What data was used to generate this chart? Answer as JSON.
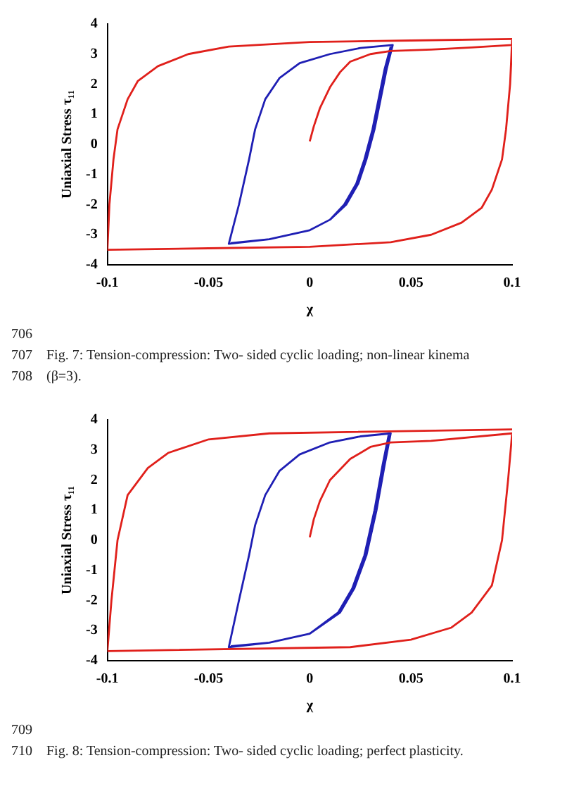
{
  "chart_data": [
    {
      "type": "line",
      "xlabel": "χ",
      "ylabel": "Uniaxial Stress τ₁₁",
      "xlim": [
        -0.1,
        0.1
      ],
      "xticks": [
        -0.1,
        -0.05,
        0,
        0.05,
        0.1
      ],
      "ylim": [
        -4,
        4
      ],
      "yticks": [
        -4,
        -3,
        -2,
        -1,
        0,
        1,
        2,
        3,
        4
      ],
      "grid": false,
      "legend": false,
      "marker": "none",
      "line_style": "solid",
      "series": [
        {
          "color": "#e0201b",
          "x": [
            0,
            0.002,
            0.005,
            0.01,
            0.015,
            0.02,
            0.03,
            0.04,
            0.06,
            0.08,
            0.1,
            0.099,
            0.097,
            0.095,
            0.09,
            0.085,
            0.075,
            0.06,
            0.04,
            0,
            -0.05,
            -0.1,
            -0.099,
            -0.097,
            -0.095,
            -0.09,
            -0.085,
            -0.075,
            -0.06,
            -0.04,
            0,
            0.05,
            0.1,
            0.099,
            0.097,
            0.095,
            0.09,
            0.085,
            0.075,
            0.06,
            0.04,
            0,
            -0.05,
            -0.1
          ],
          "values": [
            0.1,
            0.6,
            1.2,
            1.9,
            2.4,
            2.75,
            3.0,
            3.1,
            3.15,
            3.22,
            3.3,
            2,
            0.5,
            -0.5,
            -1.5,
            -2.1,
            -2.6,
            -3.0,
            -3.25,
            -3.4,
            -3.45,
            -3.5,
            -2,
            -0.5,
            0.5,
            1.5,
            2.1,
            2.6,
            3.0,
            3.25,
            3.4,
            3.45,
            3.5,
            2,
            0.5,
            -0.5,
            -1.5,
            -2.1,
            -2.6,
            -3.0,
            -3.25,
            -3.4,
            -3.45,
            -3.5
          ]
        },
        {
          "color": "#1f1fb4",
          "x": [
            0.04,
            0.037,
            0.034,
            0.031,
            0.027,
            0.023,
            0.017,
            0.01,
            0,
            -0.02,
            -0.04,
            -0.035,
            -0.03,
            -0.027,
            -0.022,
            -0.015,
            -0.005,
            0.01,
            0.025,
            0.041,
            0.038,
            0.035,
            0.032,
            0.028,
            0.024,
            0.018,
            0.01,
            0,
            -0.02,
            -0.039
          ],
          "values": [
            3.25,
            2.5,
            1.5,
            0.5,
            -0.5,
            -1.3,
            -2.0,
            -2.5,
            -2.85,
            -3.15,
            -3.3,
            -2.0,
            -0.5,
            0.5,
            1.5,
            2.2,
            2.7,
            3.0,
            3.2,
            3.3,
            2.5,
            1.5,
            0.5,
            -0.5,
            -1.3,
            -2.0,
            -2.5,
            -2.85,
            -3.15,
            -3.28
          ]
        }
      ],
      "annotations": [
        "706",
        "707    Fig. 7: Tension-compression: Two- sided cyclic loading; non-linear kinema",
        "708    (β=3)."
      ]
    },
    {
      "type": "line",
      "xlabel": "χ",
      "ylabel": "Uniaxial Stress τ₁₁",
      "xlim": [
        -0.1,
        0.1
      ],
      "xticks": [
        -0.1,
        -0.05,
        0,
        0.05,
        0.1
      ],
      "ylim": [
        -4,
        4
      ],
      "yticks": [
        -4,
        -3,
        -2,
        -1,
        0,
        1,
        2,
        3,
        4
      ],
      "grid": false,
      "legend": false,
      "marker": "none",
      "line_style": "solid",
      "series": [
        {
          "color": "#e0201b",
          "x": [
            0,
            0.002,
            0.005,
            0.01,
            0.02,
            0.03,
            0.04,
            0.06,
            0.1,
            0.098,
            0.095,
            0.09,
            0.08,
            0.07,
            0.05,
            0.02,
            -0.1,
            -0.098,
            -0.095,
            -0.09,
            -0.08,
            -0.07,
            -0.05,
            -0.02,
            0.1
          ],
          "values": [
            0.1,
            0.7,
            1.3,
            2.0,
            2.7,
            3.1,
            3.25,
            3.3,
            3.55,
            2,
            0,
            -1.5,
            -2.4,
            -2.9,
            -3.3,
            -3.55,
            -3.68,
            -2,
            0,
            1.5,
            2.4,
            2.9,
            3.35,
            3.55,
            3.68
          ]
        },
        {
          "color": "#1f1fb4",
          "x": [
            0.039,
            0.036,
            0.032,
            0.027,
            0.021,
            0.014,
            0,
            -0.02,
            -0.04,
            -0.035,
            -0.03,
            -0.027,
            -0.022,
            -0.015,
            -0.005,
            0.01,
            0.025,
            0.04,
            0.037,
            0.033,
            0.028,
            0.022,
            0.015,
            0,
            -0.02,
            -0.039
          ],
          "values": [
            3.5,
            2.5,
            1,
            -0.5,
            -1.6,
            -2.4,
            -3.1,
            -3.4,
            -3.55,
            -2.0,
            -0.5,
            0.5,
            1.5,
            2.3,
            2.85,
            3.25,
            3.45,
            3.55,
            2.5,
            1,
            -0.5,
            -1.6,
            -2.4,
            -3.1,
            -3.4,
            -3.52
          ]
        }
      ],
      "annotations": [
        "709",
        "710    Fig. 8: Tension-compression: Two- sided cyclic loading; perfect plasticity."
      ]
    }
  ]
}
